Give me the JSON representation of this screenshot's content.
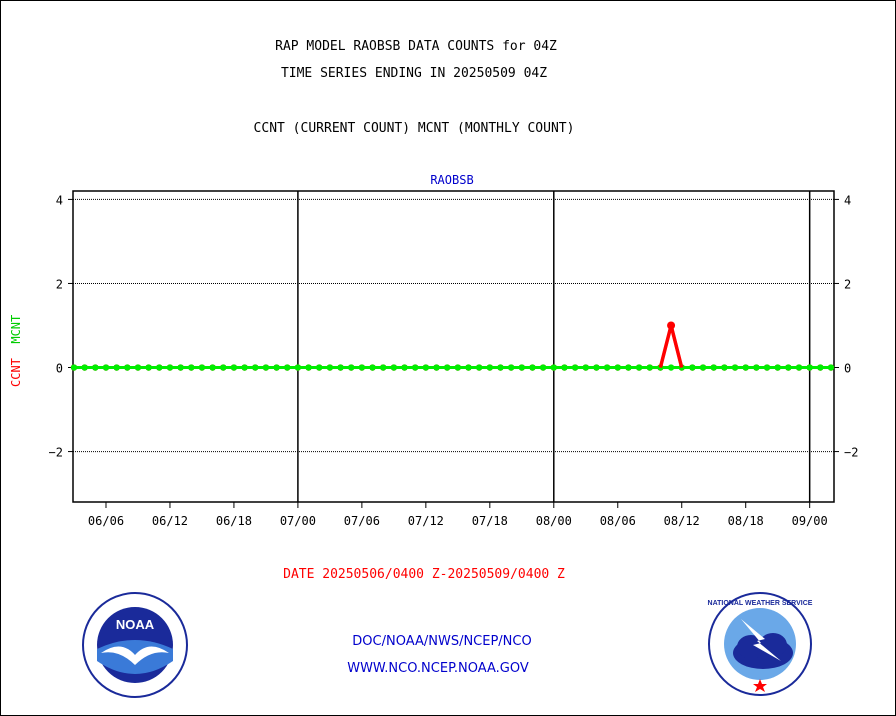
{
  "title_line1": "RAP MODEL RAOBSB DATA COUNTS for 04Z",
  "title_line2": "TIME SERIES ENDING IN 20250509 04Z",
  "subtitle": "CCNT (CURRENT COUNT) MCNT (MONTHLY COUNT)",
  "panel_label": "RAOBSB",
  "ylabel_ccnt": "CCNT",
  "ylabel_mcnt": "MCNT",
  "date_range": "DATE 20250506/0400 Z-20250509/0400 Z",
  "footer_line1": "DOC/NOAA/NWS/NCEP/NCO",
  "footer_line2": "WWW.NCO.NCEP.NOAA.GOV",
  "logos": {
    "left": "NOAA",
    "right": "NATIONAL WEATHER SERVICE"
  },
  "colors": {
    "ccnt": "#ff0000",
    "mcnt": "#00ee00",
    "panel_label": "#0000cc"
  },
  "chart_data": {
    "type": "line",
    "title": "RAP MODEL RAOBSB DATA COUNTS for 04Z",
    "x_tick_labels": [
      "06/06",
      "06/12",
      "06/18",
      "07/00",
      "07/06",
      "07/12",
      "07/18",
      "08/00",
      "08/06",
      "08/12",
      "08/18",
      "09/00"
    ],
    "major_dividers": [
      "07/00",
      "08/00",
      "09/00"
    ],
    "ylim": [
      -3.2,
      4.2
    ],
    "y_ticks": [
      -2,
      0,
      2,
      4
    ],
    "grid": true,
    "n_points": 72,
    "series": [
      {
        "name": "CCNT",
        "color": "#ff0000",
        "values": [
          0,
          0,
          0,
          0,
          0,
          0,
          0,
          0,
          0,
          0,
          0,
          0,
          0,
          0,
          0,
          0,
          0,
          0,
          0,
          0,
          0,
          0,
          0,
          0,
          0,
          0,
          0,
          0,
          0,
          0,
          0,
          0,
          0,
          0,
          0,
          0,
          0,
          0,
          0,
          0,
          0,
          0,
          0,
          0,
          0,
          0,
          0,
          0,
          0,
          0,
          0,
          0,
          0,
          0,
          0,
          0,
          1,
          0,
          0,
          0,
          0,
          0,
          0,
          0,
          0,
          0,
          0,
          0,
          0,
          0,
          0,
          0
        ]
      },
      {
        "name": "MCNT",
        "color": "#00ee00",
        "values": [
          0,
          0,
          0,
          0,
          0,
          0,
          0,
          0,
          0,
          0,
          0,
          0,
          0,
          0,
          0,
          0,
          0,
          0,
          0,
          0,
          0,
          0,
          0,
          0,
          0,
          0,
          0,
          0,
          0,
          0,
          0,
          0,
          0,
          0,
          0,
          0,
          0,
          0,
          0,
          0,
          0,
          0,
          0,
          0,
          0,
          0,
          0,
          0,
          0,
          0,
          0,
          0,
          0,
          0,
          0,
          0,
          0,
          0,
          0,
          0,
          0,
          0,
          0,
          0,
          0,
          0,
          0,
          0,
          0,
          0,
          0,
          0
        ]
      }
    ]
  }
}
